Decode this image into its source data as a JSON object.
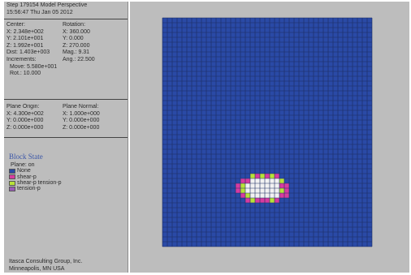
{
  "header": {
    "line1": "Step 179154  Model Perspective",
    "line2": "15:56:47 Thu Jan 05 2012"
  },
  "view_info": {
    "center_label": "Center:",
    "rotation_label": "Rotation:",
    "rows": [
      [
        "X: 2.348e+002",
        "X: 360.000"
      ],
      [
        "Y: 2.101e+001",
        "Y:   0.000"
      ],
      [
        "Z: 1.992e+001",
        "Z: 270.000"
      ],
      [
        "Dist: 1.403e+003",
        "Mag.:    9.31"
      ],
      [
        "Increments:",
        "Ang.:  22.500"
      ]
    ],
    "move": "Move: 5.580e+001",
    "rot": "Rot.:  10.000"
  },
  "plane": {
    "origin_label": "Plane Origin:",
    "normal_label": "Plane Normal:",
    "rows": [
      [
        "X: 4.300e+002",
        "X: 1.000e+000"
      ],
      [
        "Y: 0.000e+000",
        "Y: 0.000e+000"
      ],
      [
        "Z: 0.000e+000",
        "Z: 0.000e+000"
      ]
    ]
  },
  "legend": {
    "title": "Block State",
    "plane_status": "Plane: on",
    "items": [
      {
        "label": "None",
        "color": "#2a4aa6"
      },
      {
        "label": "shear-p",
        "color": "#d63ca0"
      },
      {
        "label": "shear-p tension-p",
        "color": "#b8e23a"
      },
      {
        "label": "tension-p",
        "color": "#9a5ab8"
      }
    ]
  },
  "footer": {
    "line1": "Itasca Consulting Group, Inc.",
    "line2": "Minneapolis, MN  USA"
  },
  "model": {
    "columns": 43,
    "rows": 47,
    "colors": {
      "none": "#2a4aa6",
      "grid": "#1c2c60",
      "shear": "#d63ca0",
      "shear_tension": "#b8e23a",
      "tension": "#9a5ab8",
      "excavation": "#f2f2f2"
    }
  }
}
